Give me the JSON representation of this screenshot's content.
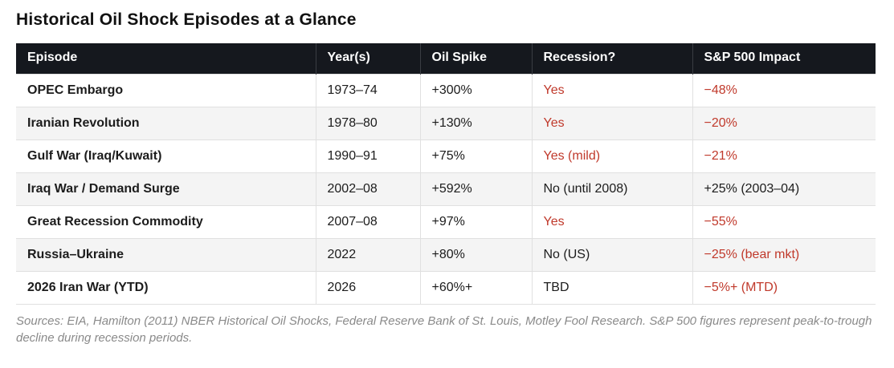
{
  "title": "Historical Oil Shock Episodes at a Glance",
  "footnote": "Sources: EIA, Hamilton (2011) NBER Historical Oil Shocks, Federal Reserve Bank of St. Louis, Motley Fool Research. S&P 500 figures represent peak-to-trough decline during recession periods.",
  "colors": {
    "header_bg": "#15181e",
    "header_text": "#ffffff",
    "negative_red": "#c0392b",
    "body_text": "#1c1c1c",
    "row_alt_bg": "#f4f4f4",
    "border": "#e0e0e0",
    "footnote_text": "#8a8a8a"
  },
  "chart_data": {
    "type": "table",
    "title": "Historical Oil Shock Episodes at a Glance",
    "columns": [
      "Episode",
      "Year(s)",
      "Oil Spike",
      "Recession?",
      "S&P 500 Impact"
    ],
    "rows": [
      {
        "episode": "OPEC Embargo",
        "years": "1973–74",
        "oil_spike": "+300%",
        "recession": {
          "text": "Yes",
          "negative": true
        },
        "sp500_impact": {
          "text": "−48%",
          "negative": true
        }
      },
      {
        "episode": "Iranian Revolution",
        "years": "1978–80",
        "oil_spike": "+130%",
        "recession": {
          "text": "Yes",
          "negative": true
        },
        "sp500_impact": {
          "text": "−20%",
          "negative": true
        }
      },
      {
        "episode": "Gulf War (Iraq/Kuwait)",
        "years": "1990–91",
        "oil_spike": "+75%",
        "recession": {
          "text": "Yes (mild)",
          "negative": true
        },
        "sp500_impact": {
          "text": "−21%",
          "negative": true
        }
      },
      {
        "episode": "Iraq War / Demand Surge",
        "years": "2002–08",
        "oil_spike": "+592%",
        "recession": {
          "text": "No (until 2008)",
          "negative": false
        },
        "sp500_impact": {
          "text": "+25% (2003–04)",
          "negative": false
        }
      },
      {
        "episode": "Great Recession Commodity",
        "years": "2007–08",
        "oil_spike": "+97%",
        "recession": {
          "text": "Yes",
          "negative": true
        },
        "sp500_impact": {
          "text": "−55%",
          "negative": true
        }
      },
      {
        "episode": "Russia–Ukraine",
        "years": "2022",
        "oil_spike": "+80%",
        "recession": {
          "text": "No (US)",
          "negative": false
        },
        "sp500_impact": {
          "text": "−25% (bear mkt)",
          "negative": true
        }
      },
      {
        "episode": "2026 Iran War (YTD)",
        "years": "2026",
        "oil_spike": "+60%+",
        "recession": {
          "text": "TBD",
          "negative": false
        },
        "sp500_impact": {
          "text": "−5%+ (MTD)",
          "negative": true
        }
      }
    ]
  }
}
